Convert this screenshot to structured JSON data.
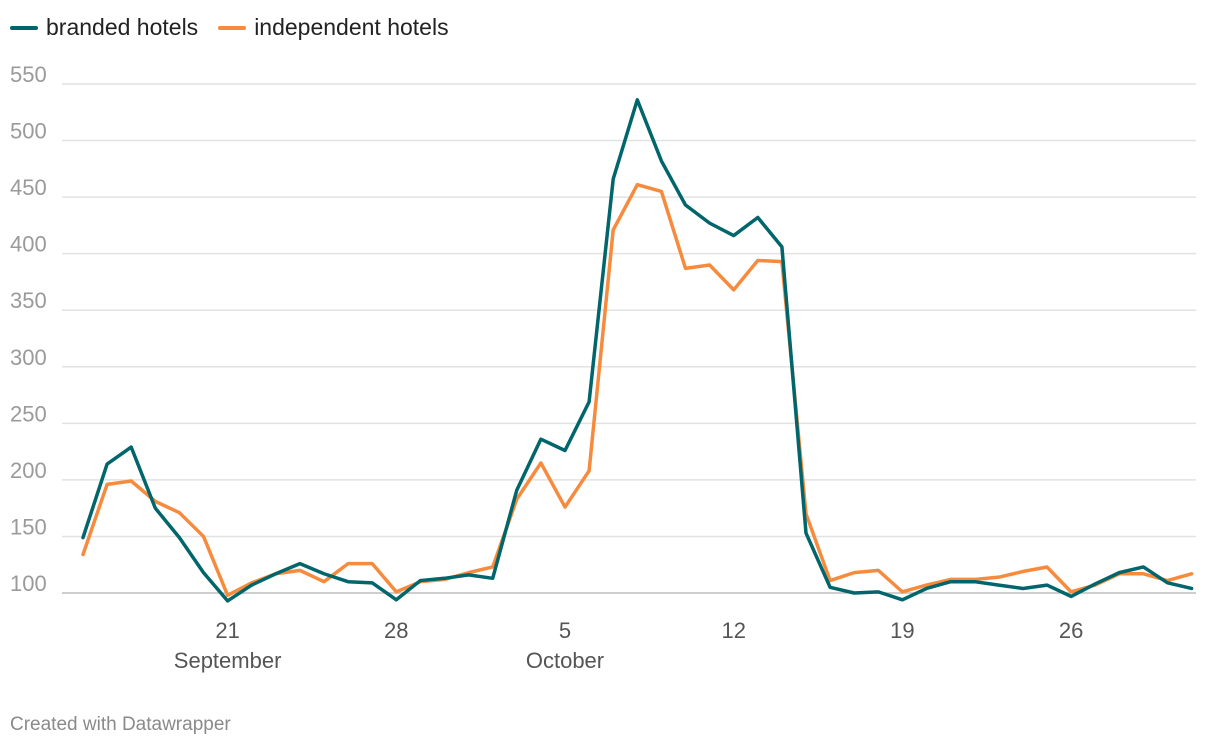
{
  "legend": {
    "items": [
      {
        "label": "branded hotels",
        "color": "#00666b"
      },
      {
        "label": "independent hotels",
        "color": "#f78b3d"
      }
    ]
  },
  "footer": {
    "credit": "Created with Datawrapper"
  },
  "chart_data": {
    "type": "line",
    "title": "",
    "xlabel": "",
    "ylabel": "",
    "x_start": "September 15",
    "x_end": "October 31",
    "ylim": [
      100,
      550
    ],
    "y_ticks": [
      100,
      150,
      200,
      250,
      300,
      350,
      400,
      450,
      500,
      550
    ],
    "x_ticks": [
      {
        "day": 21,
        "label": "21",
        "sublabel": "September"
      },
      {
        "day": 28,
        "label": "28",
        "sublabel": ""
      },
      {
        "day": 35,
        "label": "5",
        "sublabel": "October"
      },
      {
        "day": 42,
        "label": "12",
        "sublabel": ""
      },
      {
        "day": 49,
        "label": "19",
        "sublabel": ""
      },
      {
        "day": 56,
        "label": "26",
        "sublabel": ""
      }
    ],
    "grid": true,
    "legend_position": "top-left",
    "series": [
      {
        "name": "branded hotels",
        "color": "#00666b",
        "values": [
          149,
          214,
          229,
          175,
          149,
          118,
          93,
          107,
          117,
          126,
          117,
          110,
          109,
          94,
          111,
          113,
          116,
          113,
          191,
          236,
          226,
          269,
          466,
          536,
          482,
          443,
          427,
          416,
          432,
          406,
          153,
          105,
          100,
          101,
          94,
          104,
          110,
          110,
          107,
          104,
          107,
          97,
          108,
          118,
          123,
          109,
          104
        ]
      },
      {
        "name": "independent hotels",
        "color": "#f78b3d",
        "values": [
          134,
          196,
          199,
          181,
          171,
          150,
          98,
          109,
          117,
          120,
          110,
          126,
          126,
          101,
          110,
          112,
          118,
          123,
          183,
          215,
          176,
          208,
          421,
          461,
          455,
          387,
          390,
          368,
          394,
          393,
          170,
          111,
          118,
          120,
          101,
          107,
          112,
          112,
          114,
          119,
          123,
          101,
          107,
          117,
          117,
          111,
          117
        ]
      }
    ]
  }
}
